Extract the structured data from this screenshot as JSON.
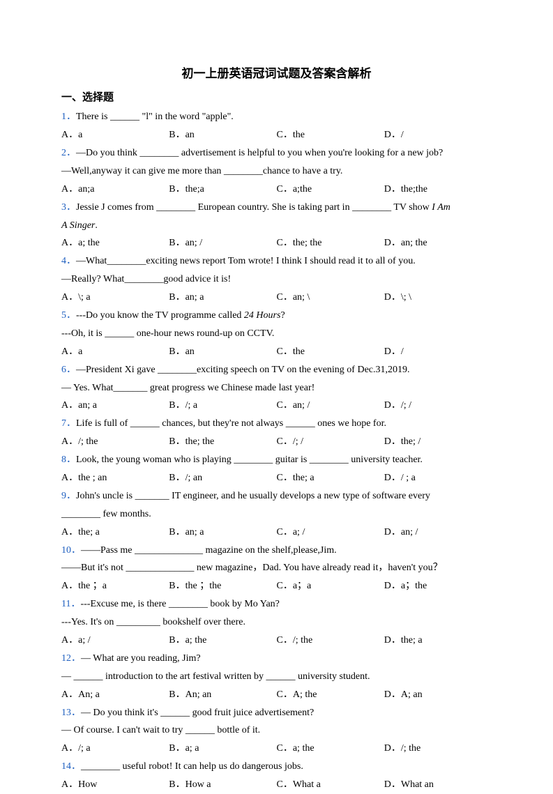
{
  "title": "初一上册英语冠词试题及答案含解析",
  "section": "一、选择题",
  "questions": [
    {
      "num": "1．",
      "text": "There is ______ \"l\" in the word \"apple\".",
      "opts": [
        "A．a",
        "B．an",
        "C．the",
        "D．/"
      ]
    },
    {
      "num": "2．",
      "text": "—Do you think ________ advertisement is helpful to you when you're looking for a new job?",
      "line2": "—Well,anyway it can give me more than ________chance to have a try.",
      "opts": [
        "A．an;a",
        "B．the;a",
        "C．a;the",
        "D．the;the"
      ]
    },
    {
      "num": "3．",
      "text": "Jessie J comes from ________ European country. She is taking part in ________ TV show ",
      "italic1": "I Am",
      "line2italic": "A Singer",
      "line2after": ".",
      "opts": [
        "A．a; the",
        "B．an; /",
        "C．the; the",
        "D．an; the"
      ]
    },
    {
      "num": "4．",
      "text": "—What________exciting news report Tom wrote! I think I should read it to all of you.",
      "line2": "—Really? What________good advice it is!",
      "opts": [
        "A．\\; a",
        "B．an; a",
        "C．an; \\",
        "D．\\; \\"
      ]
    },
    {
      "num": "5．",
      "text": "---Do you know the TV programme called ",
      "italic1": "24 Hours",
      "after1": "?",
      "line2": "---Oh, it is ______ one-hour news round-up on CCTV.",
      "opts": [
        "A．a",
        "B．an",
        "C．the",
        "D．/"
      ]
    },
    {
      "num": "6．",
      "text": "—President Xi gave ________exciting speech on TV on the evening of Dec.31,2019.",
      "line2": "— Yes. What_______ great progress we Chinese made last year!",
      "opts": [
        "A．an; a",
        "B．/; a",
        "C．an; /",
        "D．/; /"
      ]
    },
    {
      "num": "7．",
      "text": "Life is full of ______ chances, but they're not always ______ ones we hope for.",
      "opts": [
        "A．/; the",
        "B．the; the",
        "C．/; /",
        "D．the; /"
      ]
    },
    {
      "num": "8．",
      "text": "Look, the young woman who is playing ________ guitar is ________ university teacher.",
      "opts": [
        "A．the ; an",
        "B．/; an",
        "C．the; a",
        "D．/ ; a"
      ]
    },
    {
      "num": "9．",
      "text": "John's uncle is _______ IT engineer, and he usually develops a new type of software every",
      "line2": "________ few months.",
      "opts": [
        "A．the; a",
        "B．an; a",
        "C．a; /",
        "D．an; /"
      ]
    },
    {
      "num": "10．",
      "text": "——Pass me ______________ magazine on the shelf,please,Jim.",
      "line2": "——But it's not ______________ new magazine，Dad. You have already read it，haven't you？",
      "opts": [
        "A．the ；a",
        "B．the ；the",
        "C．a；a",
        "D．a；the"
      ]
    },
    {
      "num": "11．",
      "text": "---Excuse me, is there ________ book by Mo Yan?",
      "line2": "---Yes. It's on _________ bookshelf over there.",
      "opts": [
        "A．a; /",
        "B．a; the",
        "C．/; the",
        "D．the; a"
      ]
    },
    {
      "num": "12．",
      "text": "— What are you reading, Jim?",
      "line2": "— ______ introduction to the art festival written by ______ university student.",
      "opts": [
        "A．An; a",
        "B．An; an",
        "C．A; the",
        "D．A; an"
      ]
    },
    {
      "num": "13．",
      "text": "— Do you think it's ______ good fruit juice advertisement?",
      "line2": "— Of course. I can't wait to try ______ bottle of it.",
      "opts": [
        "A．/; a",
        "B．a; a",
        "C．a; the",
        "D．/; the"
      ]
    },
    {
      "num": "14．",
      "text": "________ useful robot! It can help us do dangerous jobs.",
      "opts": [
        "A．How",
        "B．How a",
        "C．What a",
        "D．What an"
      ]
    }
  ]
}
